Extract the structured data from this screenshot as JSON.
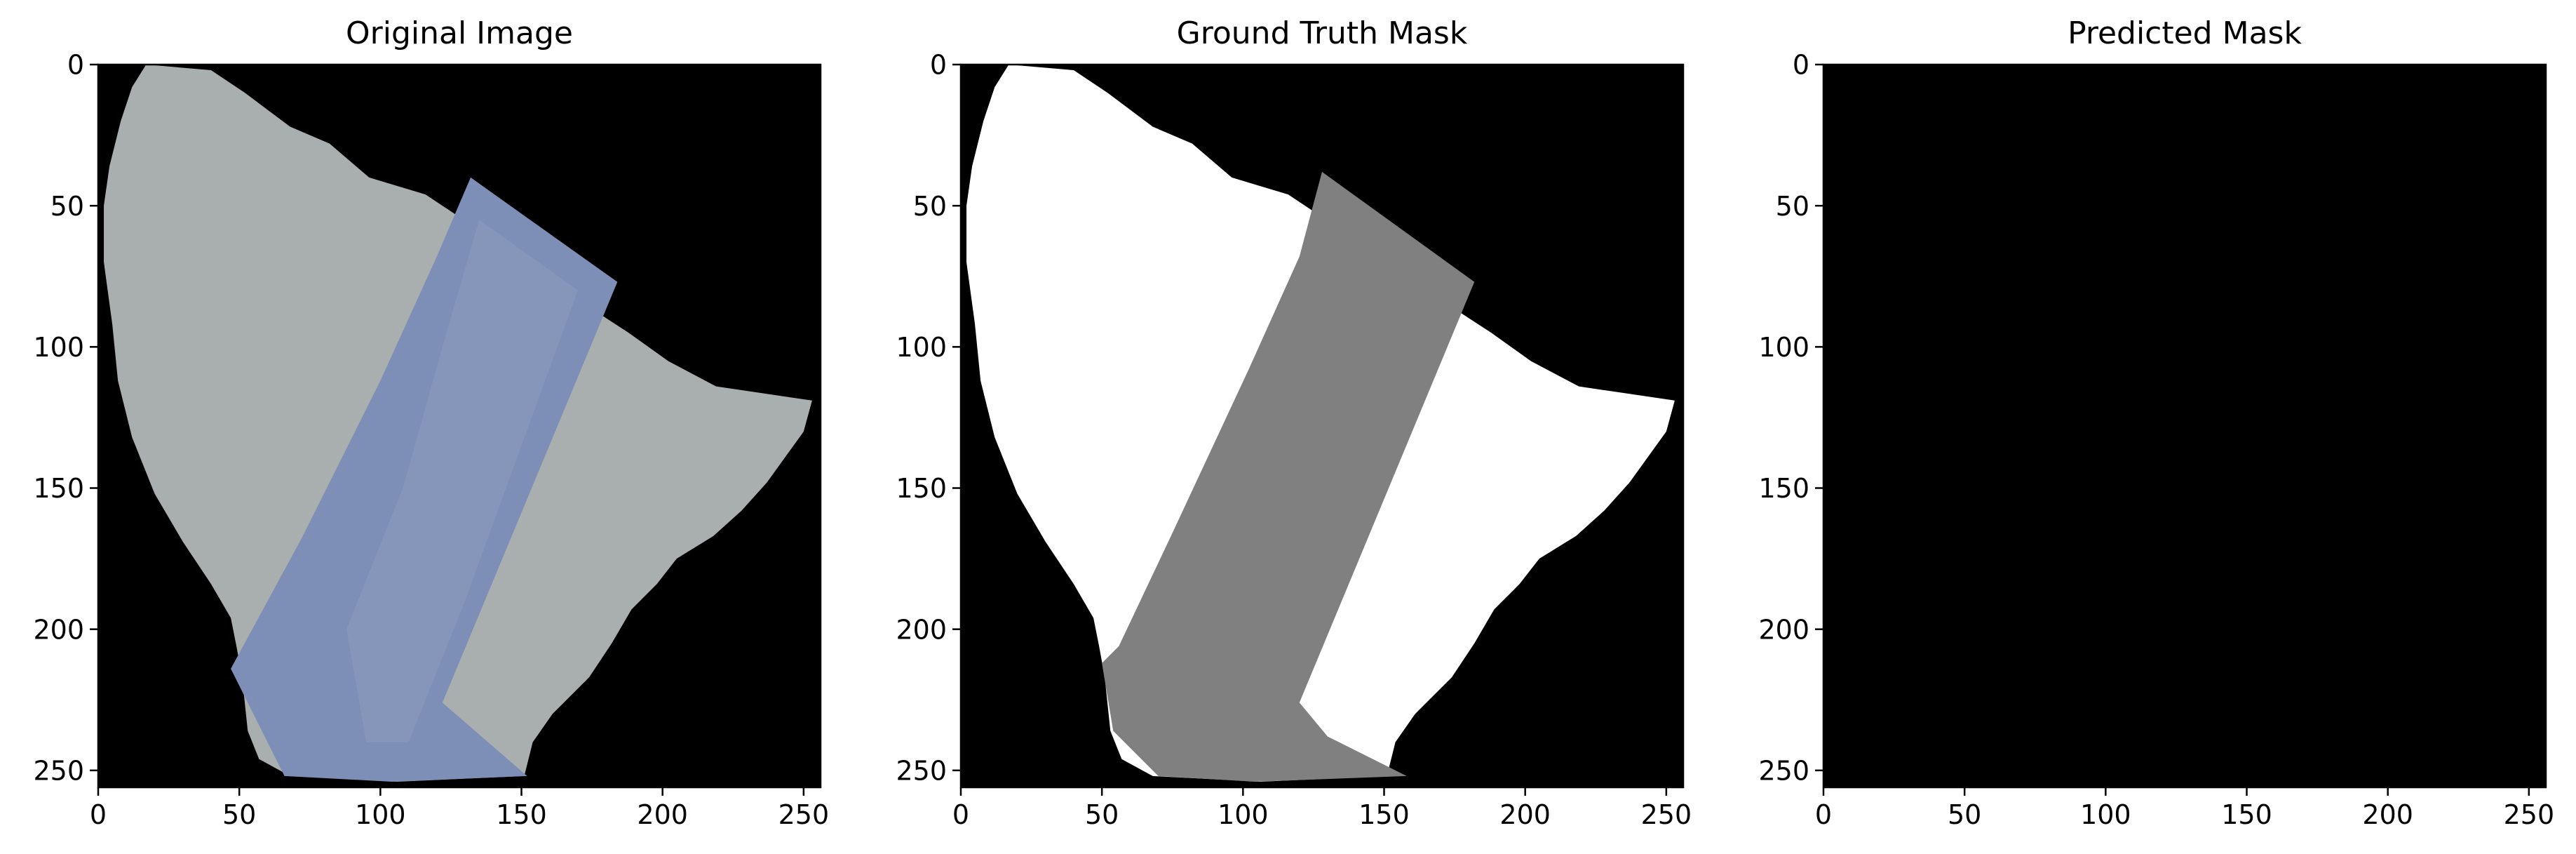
{
  "panels": [
    {
      "title": "Original Image",
      "kind": "photo",
      "xticks": [
        "0",
        "50",
        "100",
        "150",
        "200",
        "250"
      ],
      "yticks": [
        "0",
        "50",
        "100",
        "150",
        "200",
        "250"
      ]
    },
    {
      "title": "Ground Truth Mask",
      "kind": "mask",
      "xticks": [
        "0",
        "50",
        "100",
        "150",
        "200",
        "250"
      ],
      "yticks": [
        "0",
        "50",
        "100",
        "150",
        "200",
        "250"
      ]
    },
    {
      "title": "Predicted Mask",
      "kind": "empty",
      "xticks": [
        "0",
        "50",
        "100",
        "150",
        "200",
        "250"
      ],
      "yticks": [
        "0",
        "50",
        "100",
        "150",
        "200",
        "250"
      ]
    }
  ],
  "axis_range": [
    0,
    256
  ],
  "tick_values": [
    0,
    50,
    100,
    150,
    200,
    250
  ],
  "colors": {
    "background": "#000000",
    "rock_gray": "#a9aeaf",
    "vein_blue": "#7d8fb6",
    "mask_white": "#ffffff",
    "mask_gray": "#808080"
  }
}
